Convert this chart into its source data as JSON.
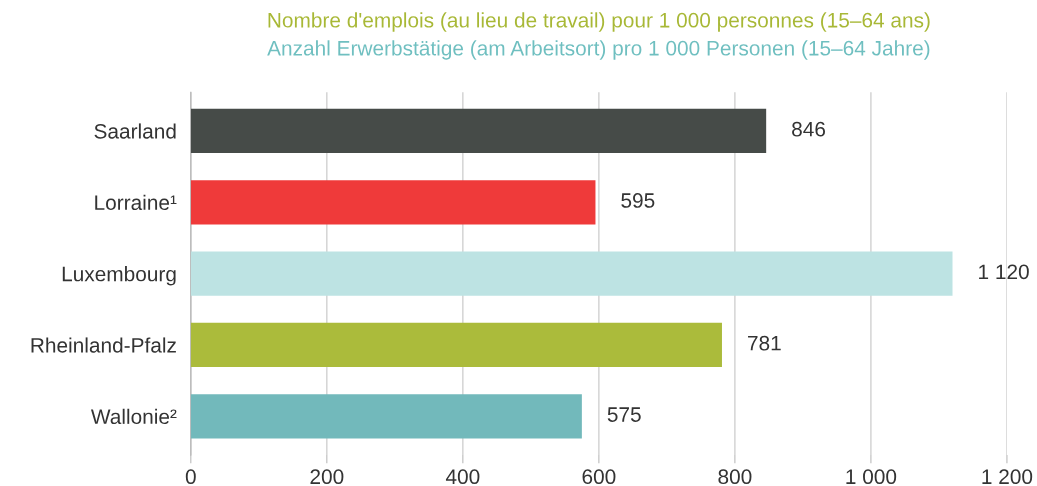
{
  "chart_data": {
    "type": "bar",
    "orientation": "horizontal",
    "title": "Nombre d'emplois (au lieu de travail) pour 1 000 personnes (15–64 ans)",
    "subtitle": "Anzahl Erwerbstätige (am Arbeitsort) pro 1 000 Personen (15–64 Jahre)",
    "categories": [
      "Saarland",
      "Lorraine¹",
      "Luxembourg",
      "Rheinland-Pfalz",
      "Wallonie²"
    ],
    "values": [
      846,
      595,
      1120,
      781,
      575
    ],
    "colors": [
      "#464b48",
      "#ef3a3a",
      "#bde3e3",
      "#abbb3b",
      "#72b9bb"
    ],
    "value_labels": [
      "846",
      "595",
      "1 120",
      "781",
      "575"
    ],
    "xlim": [
      0,
      1200
    ],
    "xticks": [
      0,
      200,
      400,
      600,
      800,
      {
        "value": 1000,
        "label": "1 000"
      },
      {
        "value": 1200,
        "label": "1 200"
      }
    ],
    "grid": "x",
    "legend": false
  }
}
